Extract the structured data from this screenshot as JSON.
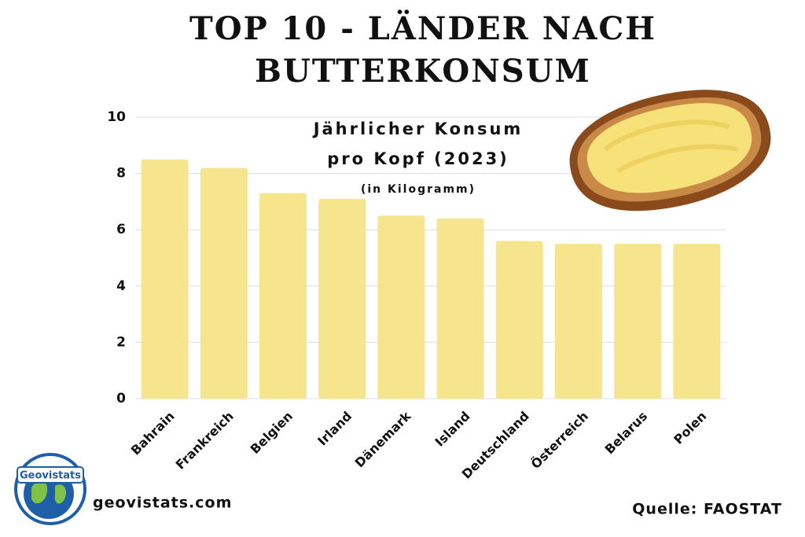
{
  "chart_data": {
    "type": "bar",
    "title": [
      "TOP 10 - LÄNDER NACH",
      "BUTTERKONSUM"
    ],
    "subtitle": [
      "Jährlicher Konsum",
      "pro Kopf (2023)"
    ],
    "unit_note": "(in Kilogramm)",
    "categories": [
      "Bahrain",
      "Frankreich",
      "Belgien",
      "Irland",
      "Dänemark",
      "Island",
      "Deutschland",
      "Österreich",
      "Belarus",
      "Polen"
    ],
    "values": [
      8.5,
      8.2,
      7.3,
      7.1,
      6.5,
      6.4,
      5.6,
      5.5,
      5.5,
      5.5
    ],
    "color": "#f6e58d",
    "ylim": [
      0,
      10
    ],
    "yticks": [
      0,
      2,
      4,
      6,
      8,
      10
    ],
    "grid": true
  },
  "footer": {
    "logo": "Geovistats",
    "website": "geovistats.com",
    "source": "Quelle: FAOSTAT"
  }
}
